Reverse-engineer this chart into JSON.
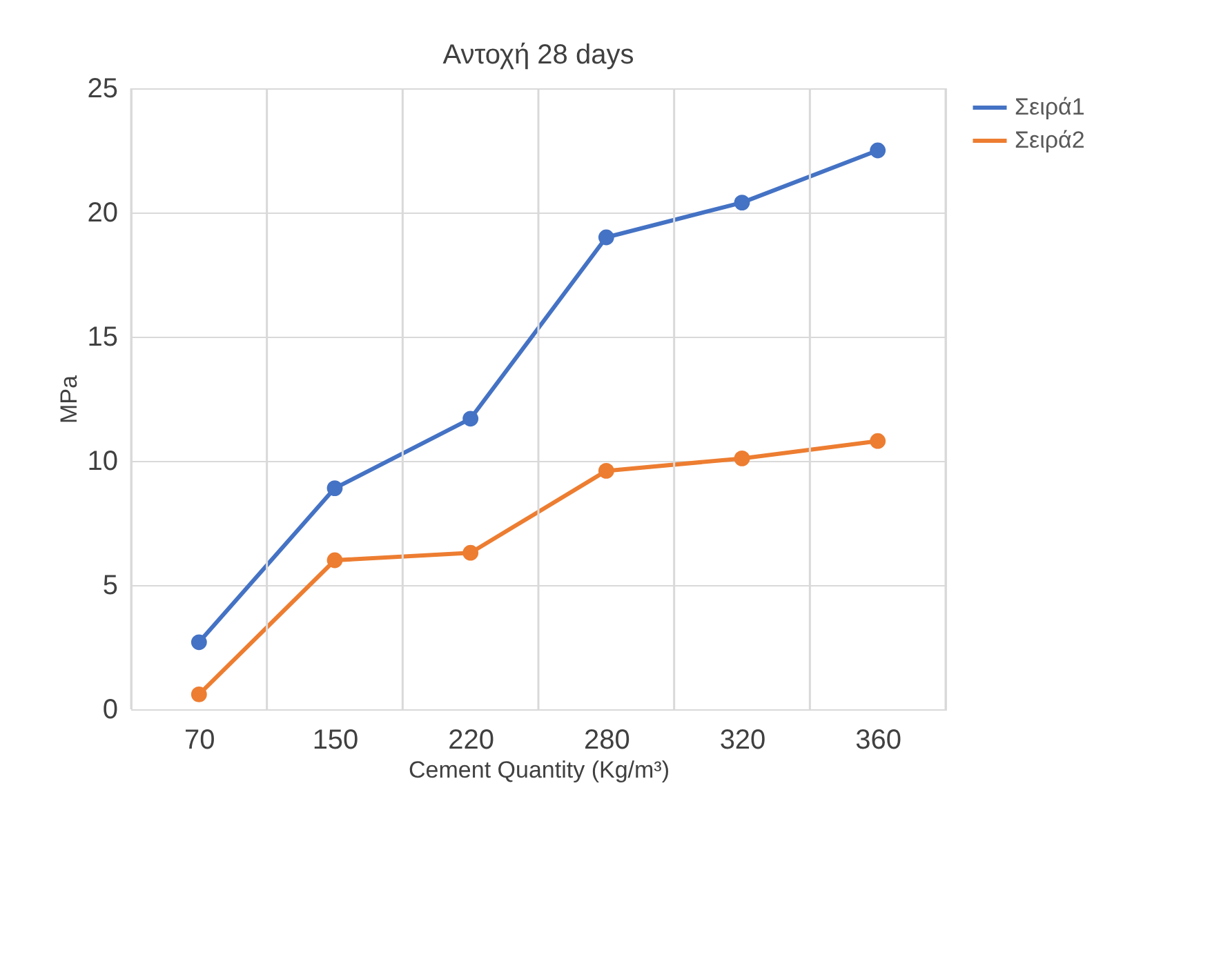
{
  "chart_data": {
    "type": "line",
    "title": "Αντοχή 28 days",
    "xlabel": "Cement Quantity (Kg/m³)",
    "ylabel": "MPa",
    "categories": [
      "70",
      "150",
      "220",
      "280",
      "320",
      "360"
    ],
    "series": [
      {
        "name": "Σειρά1",
        "color": "#4472c4",
        "values": [
          2.7,
          8.9,
          11.7,
          19.0,
          20.4,
          22.5
        ]
      },
      {
        "name": "Σειρά2",
        "color": "#ed7d31",
        "values": [
          0.6,
          6.0,
          6.3,
          9.6,
          10.1,
          10.8
        ]
      }
    ],
    "ylim": [
      0,
      25
    ],
    "yticks": [
      0,
      5,
      10,
      15,
      20,
      25
    ],
    "grid": true,
    "legend": "right",
    "marker": "circle",
    "line_style": "solid"
  }
}
